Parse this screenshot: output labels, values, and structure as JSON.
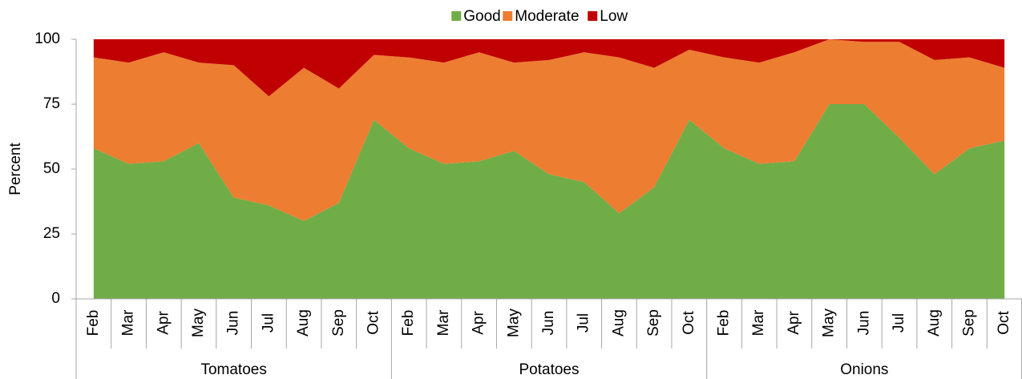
{
  "chart_data": {
    "type": "stacked_area",
    "y_label": "Percent",
    "category_groups": [
      "Tomatoes",
      "Potatoes",
      "Onions"
    ],
    "categories": [
      "Feb",
      "Mar",
      "Apr",
      "May",
      "Jun",
      "Jul",
      "Aug",
      "Sep",
      "Oct",
      "Feb",
      "Mar",
      "Apr",
      "May",
      "Jun",
      "Jul",
      "Aug",
      "Sep",
      "Oct",
      "Feb",
      "Mar",
      "Apr",
      "May",
      "Jun",
      "Jul",
      "Aug",
      "Sep",
      "Oct"
    ],
    "series": [
      {
        "name": "Good",
        "color": "#70ad47",
        "values": [
          58,
          52,
          53,
          60,
          39,
          36,
          30,
          37,
          69,
          58,
          52,
          53,
          57,
          48,
          45,
          33,
          43,
          69,
          58,
          52,
          53,
          75,
          75,
          62,
          48,
          58,
          61
        ]
      },
      {
        "name": "Moderate",
        "color": "#ed7d31",
        "values": [
          35,
          39,
          42,
          31,
          51,
          42,
          59,
          44,
          25,
          35,
          39,
          42,
          34,
          44,
          50,
          60,
          46,
          27,
          35,
          39,
          42,
          25,
          24,
          37,
          44,
          35,
          28
        ]
      },
      {
        "name": "Low",
        "color": "#c00000",
        "values": [
          7,
          9,
          5,
          9,
          10,
          22,
          11,
          19,
          6,
          7,
          9,
          5,
          9,
          8,
          5,
          7,
          11,
          4,
          7,
          9,
          5,
          0,
          1,
          1,
          8,
          7,
          11
        ]
      }
    ],
    "ylim": [
      0,
      100
    ],
    "yticks": [
      0,
      25,
      50,
      75,
      100
    ],
    "legend": "top"
  }
}
